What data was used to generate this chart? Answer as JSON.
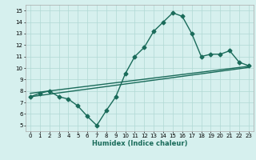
{
  "xlabel": "Humidex (Indice chaleur)",
  "xlim": [
    -0.5,
    23.5
  ],
  "ylim": [
    4.5,
    15.5
  ],
  "xticks": [
    0,
    1,
    2,
    3,
    4,
    5,
    6,
    7,
    8,
    9,
    10,
    11,
    12,
    13,
    14,
    15,
    16,
    17,
    18,
    19,
    20,
    21,
    22,
    23
  ],
  "yticks": [
    5,
    6,
    7,
    8,
    9,
    10,
    11,
    12,
    13,
    14,
    15
  ],
  "line_color": "#1a6b5a",
  "bg_color": "#d6f0ee",
  "grid_color": "#b0d8d4",
  "line1_x": [
    0,
    1,
    2,
    3,
    4,
    5,
    6,
    7,
    8,
    9,
    10,
    11,
    12,
    13,
    14,
    15,
    16,
    17,
    18,
    19,
    20,
    21,
    22,
    23
  ],
  "line1_y": [
    7.5,
    7.8,
    8.0,
    7.5,
    7.3,
    6.7,
    5.8,
    5.0,
    6.3,
    7.5,
    9.5,
    11.0,
    11.8,
    13.2,
    14.0,
    14.8,
    14.5,
    13.0,
    11.0,
    11.2,
    11.2,
    11.5,
    10.5,
    10.2
  ],
  "line2_x": [
    0,
    23
  ],
  "line2_y": [
    7.8,
    10.15
  ],
  "line3_x": [
    0,
    23
  ],
  "line3_y": [
    7.5,
    10.05
  ],
  "marker": "D",
  "markersize": 2.5,
  "linewidth": 1.0,
  "tick_fontsize": 5.0,
  "xlabel_fontsize": 6.0
}
